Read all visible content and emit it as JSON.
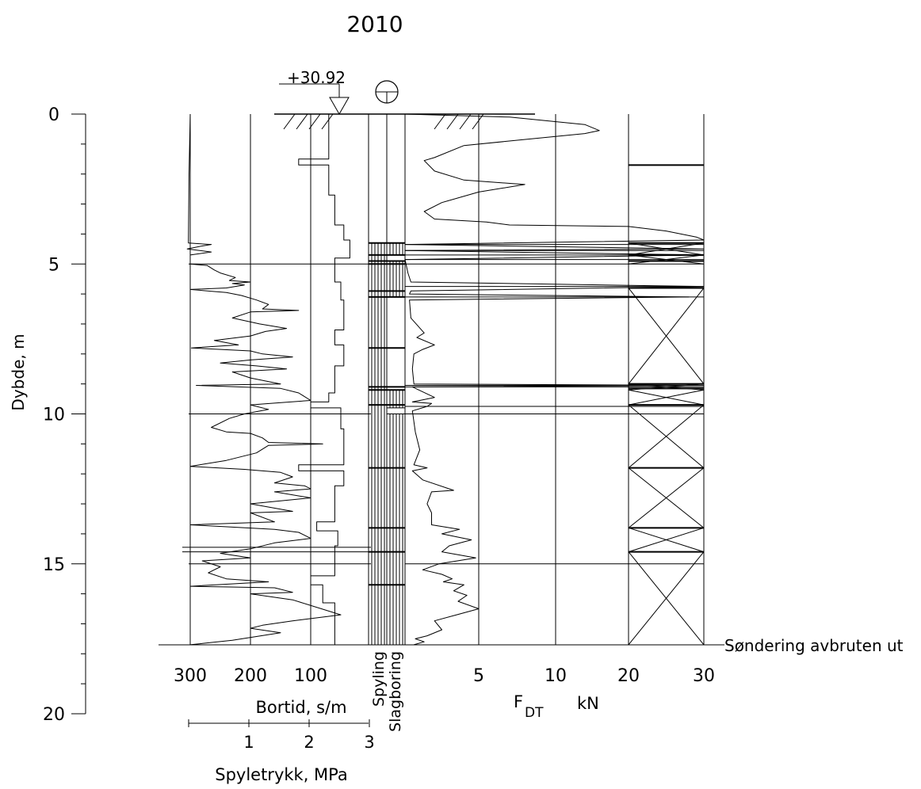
{
  "chart_data": {
    "type": "line",
    "title": "2010",
    "ylabel": "Dybde, m",
    "yticks": [
      0,
      5,
      10,
      15,
      20
    ],
    "ylim": [
      0,
      20
    ],
    "surface_level": "+30.92",
    "terminated_label": "Søndering avbruten ut",
    "terminated_depth": 17.7,
    "bortid": {
      "label": "Bortid, s/m",
      "ticks": [
        "300",
        "200",
        "100"
      ],
      "tick_values": [
        300,
        200,
        100
      ],
      "profile": [
        [
          70,
          0
        ],
        [
          70,
          1.5
        ],
        [
          120,
          1.5
        ],
        [
          120,
          1.7
        ],
        [
          70,
          1.7
        ],
        [
          70,
          2.7
        ],
        [
          60,
          2.7
        ],
        [
          60,
          3.7
        ],
        [
          45,
          3.7
        ],
        [
          45,
          4.2
        ],
        [
          35,
          4.2
        ],
        [
          35,
          4.8
        ],
        [
          60,
          4.8
        ],
        [
          60,
          5.6
        ],
        [
          50,
          5.6
        ],
        [
          50,
          6.2
        ],
        [
          45,
          6.2
        ],
        [
          45,
          7.2
        ],
        [
          60,
          7.2
        ],
        [
          60,
          7.7
        ],
        [
          45,
          7.7
        ],
        [
          45,
          8.4
        ],
        [
          60,
          8.4
        ],
        [
          60,
          9.3
        ],
        [
          70,
          9.3
        ],
        [
          70,
          9.6
        ],
        [
          100,
          9.6
        ],
        [
          100,
          9.8
        ],
        [
          50,
          9.8
        ],
        [
          50,
          10.5
        ],
        [
          45,
          10.5
        ],
        [
          45,
          11.7
        ],
        [
          120,
          11.7
        ],
        [
          120,
          11.9
        ],
        [
          45,
          11.9
        ],
        [
          45,
          12.4
        ],
        [
          60,
          12.4
        ],
        [
          60,
          13.6
        ],
        [
          90,
          13.6
        ],
        [
          90,
          13.9
        ],
        [
          55,
          13.9
        ],
        [
          55,
          14.4
        ],
        [
          60,
          14.4
        ],
        [
          60,
          15.4
        ],
        [
          100,
          15.4
        ],
        [
          100,
          15.7
        ],
        [
          80,
          15.7
        ],
        [
          80,
          16.3
        ],
        [
          60,
          16.3
        ],
        [
          60,
          17.7
        ]
      ],
      "wiggly": [
        [
          300,
          0
        ],
        [
          302,
          2
        ],
        [
          303,
          4.3
        ],
        [
          265,
          4.35
        ],
        [
          280,
          4.4
        ],
        [
          305,
          4.5
        ],
        [
          265,
          4.6
        ],
        [
          300,
          4.7
        ],
        [
          300,
          5.0
        ],
        [
          272,
          5.05
        ],
        [
          260,
          5.2
        ],
        [
          250,
          5.3
        ],
        [
          225,
          5.45
        ],
        [
          235,
          5.55
        ],
        [
          200,
          5.6
        ],
        [
          230,
          5.65
        ],
        [
          210,
          5.7
        ],
        [
          240,
          5.8
        ],
        [
          300,
          5.85
        ],
        [
          240,
          5.95
        ],
        [
          215,
          6.05
        ],
        [
          190,
          6.2
        ],
        [
          170,
          6.35
        ],
        [
          180,
          6.5
        ],
        [
          120,
          6.55
        ],
        [
          200,
          6.6
        ],
        [
          230,
          6.8
        ],
        [
          185,
          7.0
        ],
        [
          140,
          7.15
        ],
        [
          175,
          7.25
        ],
        [
          200,
          7.4
        ],
        [
          260,
          7.55
        ],
        [
          220,
          7.7
        ],
        [
          298,
          7.8
        ],
        [
          200,
          7.9
        ],
        [
          180,
          8.0
        ],
        [
          130,
          8.1
        ],
        [
          200,
          8.2
        ],
        [
          250,
          8.3
        ],
        [
          190,
          8.4
        ],
        [
          140,
          8.5
        ],
        [
          230,
          8.6
        ],
        [
          200,
          8.8
        ],
        [
          150,
          9.0
        ],
        [
          290,
          9.05
        ],
        [
          150,
          9.15
        ],
        [
          120,
          9.3
        ],
        [
          100,
          9.55
        ],
        [
          200,
          9.7
        ],
        [
          170,
          9.85
        ],
        [
          210,
          10.0
        ],
        [
          235,
          10.15
        ],
        [
          265,
          10.45
        ],
        [
          240,
          10.6
        ],
        [
          200,
          10.65
        ],
        [
          180,
          10.8
        ],
        [
          170,
          10.95
        ],
        [
          80,
          11.0
        ],
        [
          170,
          11.05
        ],
        [
          190,
          11.3
        ],
        [
          240,
          11.55
        ],
        [
          300,
          11.75
        ],
        [
          210,
          11.85
        ],
        [
          150,
          11.95
        ],
        [
          130,
          12.1
        ],
        [
          160,
          12.3
        ],
        [
          110,
          12.4
        ],
        [
          100,
          12.5
        ],
        [
          160,
          12.6
        ],
        [
          100,
          12.8
        ],
        [
          200,
          13.0
        ],
        [
          130,
          13.25
        ],
        [
          200,
          13.3
        ],
        [
          160,
          13.6
        ],
        [
          300,
          13.7
        ],
        [
          160,
          13.85
        ],
        [
          120,
          13.95
        ],
        [
          100,
          14.15
        ],
        [
          160,
          14.3
        ],
        [
          200,
          14.5
        ],
        [
          250,
          14.65
        ],
        [
          200,
          14.8
        ],
        [
          280,
          14.9
        ],
        [
          250,
          15.1
        ],
        [
          270,
          15.3
        ],
        [
          240,
          15.5
        ],
        [
          170,
          15.6
        ],
        [
          300,
          15.75
        ],
        [
          160,
          15.8
        ],
        [
          130,
          15.95
        ],
        [
          200,
          16.0
        ],
        [
          130,
          16.2
        ],
        [
          50,
          16.7
        ],
        [
          130,
          16.9
        ],
        [
          180,
          17.05
        ],
        [
          200,
          17.15
        ],
        [
          150,
          17.3
        ],
        [
          230,
          17.55
        ],
        [
          300,
          17.7
        ]
      ]
    },
    "spyletrykk": {
      "label": "Spyletrykk, MPa",
      "ticks": [
        "1",
        "2",
        "3"
      ],
      "tick_values": [
        1,
        2,
        3
      ]
    },
    "methods": {
      "left_label": "Spyling",
      "right_label": "Slagboring",
      "left_intervals": [
        [
          4.3,
          17.7
        ]
      ],
      "right_intervals": [
        [
          4.3,
          4.7
        ],
        [
          4.9,
          6.1
        ],
        [
          9.2,
          9.8
        ],
        [
          10.0,
          17.7
        ]
      ],
      "bold_ticks": [
        4.3,
        4.7,
        4.9,
        5.0,
        5.9,
        6.1,
        7.8,
        9.1,
        9.2,
        9.7,
        11.8,
        13.8,
        14.6,
        15.7
      ]
    },
    "fdt": {
      "label": "F",
      "subscript": "DT",
      "unit": "kN",
      "ticks": [
        "5",
        "10",
        "20",
        "30"
      ],
      "tick_values": [
        5,
        10,
        20,
        30
      ],
      "series": [
        [
          0,
          0
        ],
        [
          7,
          0.1
        ],
        [
          14,
          0.35
        ],
        [
          16,
          0.55
        ],
        [
          14,
          0.65
        ],
        [
          4,
          1.05
        ],
        [
          2,
          1.45
        ],
        [
          1.3,
          1.55
        ],
        [
          2,
          1.9
        ],
        [
          4,
          2.2
        ],
        [
          8,
          2.35
        ],
        [
          5,
          2.6
        ],
        [
          2.5,
          2.95
        ],
        [
          1.3,
          3.25
        ],
        [
          2,
          3.5
        ],
        [
          5.5,
          3.6
        ],
        [
          7,
          3.7
        ],
        [
          20,
          3.75
        ],
        [
          25,
          3.9
        ],
        [
          29,
          4.1
        ],
        [
          30,
          4.2
        ],
        [
          0,
          4.35
        ],
        [
          30,
          4.5
        ],
        [
          0,
          4.55
        ],
        [
          30,
          4.7
        ],
        [
          0,
          4.85
        ],
        [
          0.2,
          5.3
        ],
        [
          0.4,
          5.6
        ],
        [
          30,
          5.75
        ],
        [
          0.4,
          5.9
        ],
        [
          0.3,
          6.0
        ],
        [
          28,
          6.1
        ],
        [
          0.3,
          6.2
        ],
        [
          0.4,
          6.8
        ],
        [
          1.3,
          7.3
        ],
        [
          0.8,
          7.45
        ],
        [
          2,
          7.7
        ],
        [
          1.2,
          7.85
        ],
        [
          0.6,
          8.0
        ],
        [
          0.5,
          8.5
        ],
        [
          0.6,
          9.0
        ],
        [
          30,
          9.05
        ],
        [
          0.5,
          9.1
        ],
        [
          2,
          9.45
        ],
        [
          0.5,
          9.6
        ],
        [
          1.8,
          9.65
        ],
        [
          1.5,
          9.75
        ],
        [
          0.5,
          9.9
        ],
        [
          0.7,
          10.6
        ],
        [
          1,
          11.2
        ],
        [
          0.6,
          11.7
        ],
        [
          1.5,
          11.8
        ],
        [
          0.5,
          11.9
        ],
        [
          1.2,
          12.2
        ],
        [
          3.3,
          12.55
        ],
        [
          1.8,
          12.6
        ],
        [
          1.5,
          13.0
        ],
        [
          1.8,
          13.3
        ],
        [
          1.8,
          13.7
        ],
        [
          3.7,
          13.85
        ],
        [
          2.5,
          14.0
        ],
        [
          4.5,
          14.2
        ],
        [
          3,
          14.4
        ],
        [
          2.5,
          14.6
        ],
        [
          4.8,
          14.8
        ],
        [
          2.3,
          15.0
        ],
        [
          1.2,
          15.2
        ],
        [
          2.5,
          15.35
        ],
        [
          3.2,
          15.5
        ],
        [
          2.6,
          15.6
        ],
        [
          4,
          15.7
        ],
        [
          3.3,
          15.9
        ],
        [
          4.2,
          16.05
        ],
        [
          3.6,
          16.25
        ],
        [
          5,
          16.5
        ],
        [
          3.5,
          16.7
        ],
        [
          2,
          16.9
        ],
        [
          2.5,
          17.2
        ],
        [
          1.5,
          17.4
        ],
        [
          0.7,
          17.5
        ],
        [
          1.3,
          17.6
        ],
        [
          0.6,
          17.7
        ]
      ],
      "horizontal_lines": [
        4.35,
        4.55,
        4.7,
        4.85,
        5.0,
        5.75,
        6.1,
        9.05,
        9.1,
        9.75,
        10.0,
        15.0
      ],
      "x_panel_boxes": [
        [
          4.3,
          4.7
        ],
        [
          4.7,
          5.0
        ],
        [
          5.8,
          9.0
        ],
        [
          9.0,
          9.2
        ],
        [
          9.2,
          9.7
        ],
        [
          9.7,
          11.8
        ],
        [
          11.8,
          13.8
        ],
        [
          13.8,
          14.6
        ],
        [
          14.6,
          17.7
        ]
      ],
      "panel_thick_lines": [
        1.7,
        4.3,
        4.7,
        4.9,
        5.8,
        9.0,
        9.15,
        9.7,
        11.8,
        13.8,
        14.6
      ]
    }
  }
}
